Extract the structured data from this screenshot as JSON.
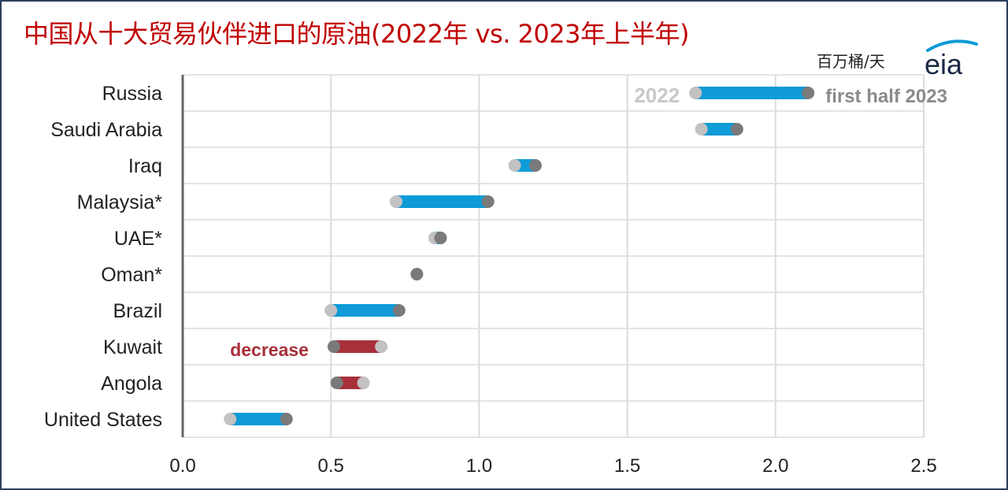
{
  "title": "中国从十大贸易伙伴进口的原油(2022年  vs. 2023年上半年)",
  "units_label": "百万桶/天",
  "logo_text": "eia",
  "colors": {
    "title": "#c00000",
    "increase": "#0e9bd8",
    "decrease": "#a8303a",
    "dot_2022": "#c2c2c2",
    "dot_2023": "#7a7a7a",
    "grid": "#dcdcdc",
    "axis": "#666666"
  },
  "chart_data": {
    "type": "dumbbell",
    "xlim": [
      0,
      2.5
    ],
    "x_ticks": [
      {
        "value": 0,
        "label": "0.0"
      },
      {
        "value": 0.5,
        "label": "0.5"
      },
      {
        "value": 1.0,
        "label": "1.0"
      },
      {
        "value": 1.5,
        "label": "1.5"
      },
      {
        "value": 2.0,
        "label": "2.0"
      },
      {
        "value": 2.5,
        "label": "2.5"
      }
    ],
    "grid": true,
    "categories": [
      "Russia",
      "Saudi Arabia",
      "Iraq",
      "Malaysia*",
      "UAE*",
      "Oman*",
      "Brazil",
      "Kuwait",
      "Angola",
      "United States"
    ],
    "series": [
      {
        "name": "2022",
        "values": [
          1.73,
          1.75,
          1.12,
          0.72,
          0.85,
          0.79,
          0.5,
          0.67,
          0.61,
          0.16
        ]
      },
      {
        "name": "first half 2023",
        "values": [
          2.11,
          1.87,
          1.19,
          1.03,
          0.87,
          0.79,
          0.73,
          0.51,
          0.52,
          0.35
        ]
      }
    ],
    "annotations": [
      {
        "text": "2022",
        "near": "Russia",
        "position": "left of 2022 dot"
      },
      {
        "text": "first half 2023",
        "near": "Russia",
        "position": "right of 2023 dot"
      },
      {
        "text": "decrease",
        "near": "Kuwait",
        "position": "left of bar"
      }
    ]
  }
}
